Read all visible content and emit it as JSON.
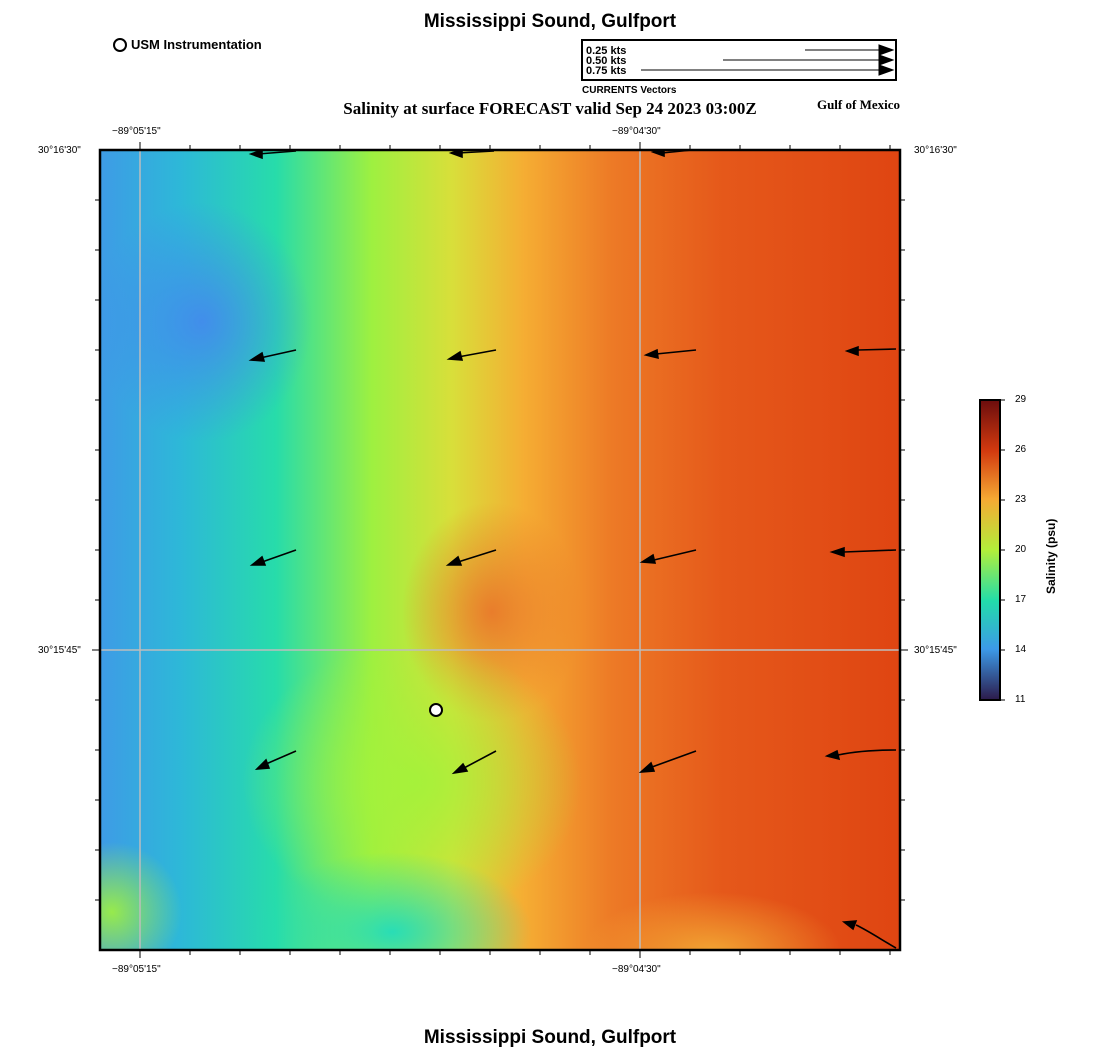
{
  "map": {
    "title_top": "Mississippi Sound, Gulfport",
    "title_bottom": "Mississippi Sound, Gulfport",
    "subtitle": "Salinity at surface FORECAST valid Sep 24 2023 03:00Z",
    "region_label": "Gulf of Mexico",
    "station_legend": "USM Instrumentation",
    "station_icon": "white-circle-marker"
  },
  "vector_legend": {
    "title": "CURRENTS Vectors",
    "entries": [
      {
        "label": "0.25 kts",
        "speed_kts": 0.25
      },
      {
        "label": "0.50 kts",
        "speed_kts": 0.5
      },
      {
        "label": "0.75 kts",
        "speed_kts": 0.75
      }
    ]
  },
  "axes": {
    "lon_ticks": [
      "−89°05'15\"",
      "−89°04'30\""
    ],
    "lat_ticks": [
      "30°16'30\"",
      "30°15'45\""
    ]
  },
  "colorbar": {
    "title": "Salinity (psu)",
    "min": 11,
    "max": 29,
    "ticks": [
      "29",
      "26",
      "23",
      "20",
      "17",
      "14",
      "11"
    ],
    "colors": [
      "#6b0d0d",
      "#d33a0f",
      "#f5a933",
      "#b3ee3a",
      "#22dcaa",
      "#3c9ae8",
      "#2c1a4a"
    ]
  }
}
